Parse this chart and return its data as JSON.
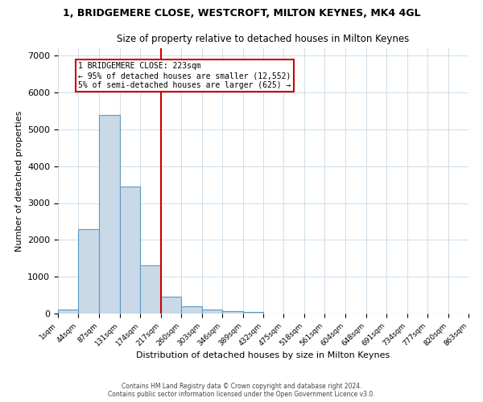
{
  "title1": "1, BRIDGEMERE CLOSE, WESTCROFT, MILTON KEYNES, MK4 4GL",
  "title2": "Size of property relative to detached houses in Milton Keynes",
  "xlabel": "Distribution of detached houses by size in Milton Keynes",
  "ylabel": "Number of detached properties",
  "bar_values": [
    100,
    2300,
    5400,
    3450,
    1320,
    460,
    200,
    100,
    60,
    40,
    0,
    0,
    0,
    0,
    0,
    0,
    0,
    0,
    0,
    0
  ],
  "bin_edges": [
    1,
    44,
    87,
    131,
    174,
    217,
    260,
    303,
    346,
    389,
    432,
    475,
    518,
    561,
    604,
    648,
    691,
    734,
    777,
    820,
    863
  ],
  "x_labels": [
    "1sqm",
    "44sqm",
    "87sqm",
    "131sqm",
    "174sqm",
    "217sqm",
    "260sqm",
    "303sqm",
    "346sqm",
    "389sqm",
    "432sqm",
    "475sqm",
    "518sqm",
    "561sqm",
    "604sqm",
    "648sqm",
    "691sqm",
    "734sqm",
    "777sqm",
    "820sqm",
    "863sqm"
  ],
  "bar_color": "#c9d9e8",
  "bar_edge_color": "#5a9ac5",
  "vline_x": 217,
  "vline_color": "#cc0000",
  "annotation_line1": "1 BRIDGEMERE CLOSE: 223sqm",
  "annotation_line2": "← 95% of detached houses are smaller (12,552)",
  "annotation_line3": "5% of semi-detached houses are larger (625) →",
  "annotation_box_color": "#ffffff",
  "annotation_border_color": "#cc0000",
  "ylim": [
    0,
    7200
  ],
  "yticks": [
    0,
    1000,
    2000,
    3000,
    4000,
    5000,
    6000,
    7000
  ],
  "footer": "Contains HM Land Registry data © Crown copyright and database right 2024.\nContains public sector information licensed under the Open Government Licence v3.0.",
  "bg_color": "#ffffff",
  "grid_color": "#d0dde8"
}
